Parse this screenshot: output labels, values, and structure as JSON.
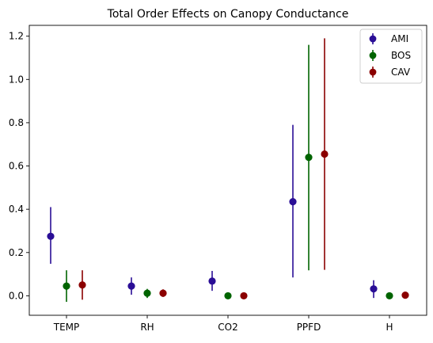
{
  "chart_data": {
    "type": "scatter",
    "title": "Total Order Effects on Canopy Conductance",
    "xlabel": "",
    "ylabel": "",
    "categories": [
      "TEMP",
      "RH",
      "CO2",
      "PPFD",
      "H"
    ],
    "ylim": [
      -0.09,
      1.25
    ],
    "yticks": [
      0.0,
      0.2,
      0.4,
      0.6,
      0.8,
      1.0,
      1.2
    ],
    "ytick_labels": [
      "0.0",
      "0.2",
      "0.4",
      "0.6",
      "0.8",
      "1.0",
      "1.2"
    ],
    "grid": false,
    "legend": "top-right",
    "series": [
      {
        "name": "AMI",
        "color": "#2a0e96",
        "values": [
          0.275,
          0.045,
          0.068,
          0.435,
          0.032
        ],
        "lower": [
          0.148,
          0.005,
          0.023,
          0.085,
          -0.01
        ],
        "upper": [
          0.41,
          0.085,
          0.115,
          0.79,
          0.072
        ]
      },
      {
        "name": "BOS",
        "color": "#006400",
        "values": [
          0.045,
          0.012,
          0.0,
          0.64,
          0.0
        ],
        "lower": [
          -0.028,
          -0.01,
          -0.002,
          0.118,
          -0.002
        ],
        "upper": [
          0.118,
          0.032,
          0.002,
          1.16,
          0.002
        ]
      },
      {
        "name": "CAV",
        "color": "#8b0000",
        "values": [
          0.05,
          0.012,
          0.0,
          0.655,
          0.003
        ],
        "lower": [
          -0.018,
          -0.005,
          -0.002,
          0.12,
          0.0
        ],
        "upper": [
          0.118,
          0.03,
          0.002,
          1.19,
          0.006
        ]
      }
    ]
  }
}
